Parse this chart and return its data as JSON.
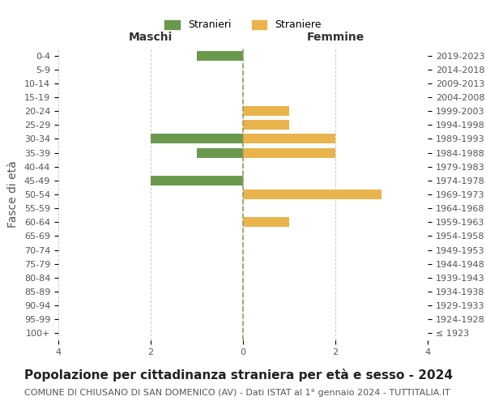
{
  "age_groups": [
    "100+",
    "95-99",
    "90-94",
    "85-89",
    "80-84",
    "75-79",
    "70-74",
    "65-69",
    "60-64",
    "55-59",
    "50-54",
    "45-49",
    "40-44",
    "35-39",
    "30-34",
    "25-29",
    "20-24",
    "15-19",
    "10-14",
    "5-9",
    "0-4"
  ],
  "birth_years": [
    "≤ 1923",
    "1924-1928",
    "1929-1933",
    "1934-1938",
    "1939-1943",
    "1944-1948",
    "1949-1953",
    "1954-1958",
    "1959-1963",
    "1964-1968",
    "1969-1973",
    "1974-1978",
    "1979-1983",
    "1984-1988",
    "1989-1993",
    "1994-1998",
    "1999-2003",
    "2004-2008",
    "2009-2013",
    "2014-2018",
    "2019-2023"
  ],
  "males": [
    0,
    0,
    0,
    0,
    0,
    0,
    0,
    0,
    0,
    0,
    0,
    2,
    0,
    1,
    2,
    0,
    0,
    0,
    0,
    0,
    1
  ],
  "females": [
    0,
    0,
    0,
    0,
    0,
    0,
    0,
    0,
    1,
    0,
    3,
    0,
    0,
    2,
    2,
    1,
    1,
    0,
    0,
    0,
    0
  ],
  "male_color": "#6a994e",
  "female_color": "#e9b44c",
  "xlim": 4,
  "title": "Popolazione per cittadinanza straniera per età e sesso - 2024",
  "subtitle": "COMUNE DI CHIUSANO DI SAN DOMENICO (AV) - Dati ISTAT al 1° gennaio 2024 - TUTTITALIA.IT",
  "ylabel_left": "Fasce di età",
  "xlabel_left": "Maschi",
  "xlabel_right": "Femmine",
  "legend_male": "Stranieri",
  "legend_female": "Straniere",
  "background_color": "#ffffff",
  "grid_color": "#cccccc",
  "bar_height": 0.7,
  "title_fontsize": 11,
  "subtitle_fontsize": 8,
  "axis_label_fontsize": 10,
  "tick_fontsize": 8
}
